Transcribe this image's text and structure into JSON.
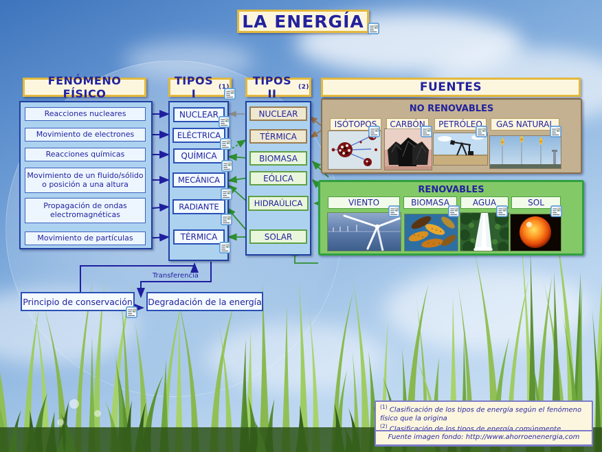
{
  "title": "LA ENERGÍA",
  "fenomeno": {
    "header": "FENÓMENO FÍSICO",
    "items": [
      "Reacciones nucleares",
      "Movimiento de electrones",
      "Reacciones químicas",
      "Movimiento de un fluido/sólido o posición a una altura",
      "Propagación de ondas electromagnéticas",
      "Movimiento de partículas"
    ]
  },
  "tipos1": {
    "header": "TIPOS I",
    "sup": "(1)",
    "items": [
      "NUCLEAR",
      "ELÉCTRICA",
      "QUÍMICA",
      "MECÁNICA",
      "RADIANTE",
      "TÉRMICA"
    ]
  },
  "tipos2": {
    "header": "TIPOS II",
    "sup": "(2)",
    "items": [
      "NUCLEAR",
      "TÉRMICA",
      "BIOMASA",
      "EÓLICA",
      "HIDRAÚLICA",
      "SOLAR"
    ]
  },
  "fuentes": {
    "header": "FUENTES",
    "no_renovables": {
      "title": "NO RENOVABLES",
      "labels": [
        "ISÓTOPOS",
        "CARBÓN",
        "PETRÓLEO",
        "GAS NATURAL"
      ]
    },
    "renovables": {
      "title": "RENOVABLES",
      "labels": [
        "VIENTO",
        "BIOMASA",
        "AGUA",
        "SOL"
      ]
    }
  },
  "flow": {
    "conservacion": "Principio de conservación",
    "degradacion": "Degradación de la energía",
    "transferencia": "Transferencia"
  },
  "footnotes": {
    "notes": [
      {
        "sup": "(1)",
        "text": "Clasificación de los tipos de energía según el fenómeno físico que la origina"
      },
      {
        "sup": "(2)",
        "text": "Clasificación de los tipos de energía comúnmente conocidos"
      }
    ],
    "source": "Fuente imagen fondo: http://www.ahorroenenergia,com"
  },
  "colors": {
    "navy_text": "#22229E",
    "gold_border": "#E3B93D",
    "cream": "#FDF6DF",
    "panel_blue": "#ADD2F0",
    "panel_border": "#1F3FA0",
    "nonrenew_fill": "#C3B191",
    "nonrenew_border": "#8A6F4B",
    "renew_fill": "#84C968",
    "renew_border": "#2FA03F",
    "arrow_blue": "#1F1F9E",
    "arrow_green": "#2E8F2E",
    "arrow_brown": "#9A6F3F"
  }
}
